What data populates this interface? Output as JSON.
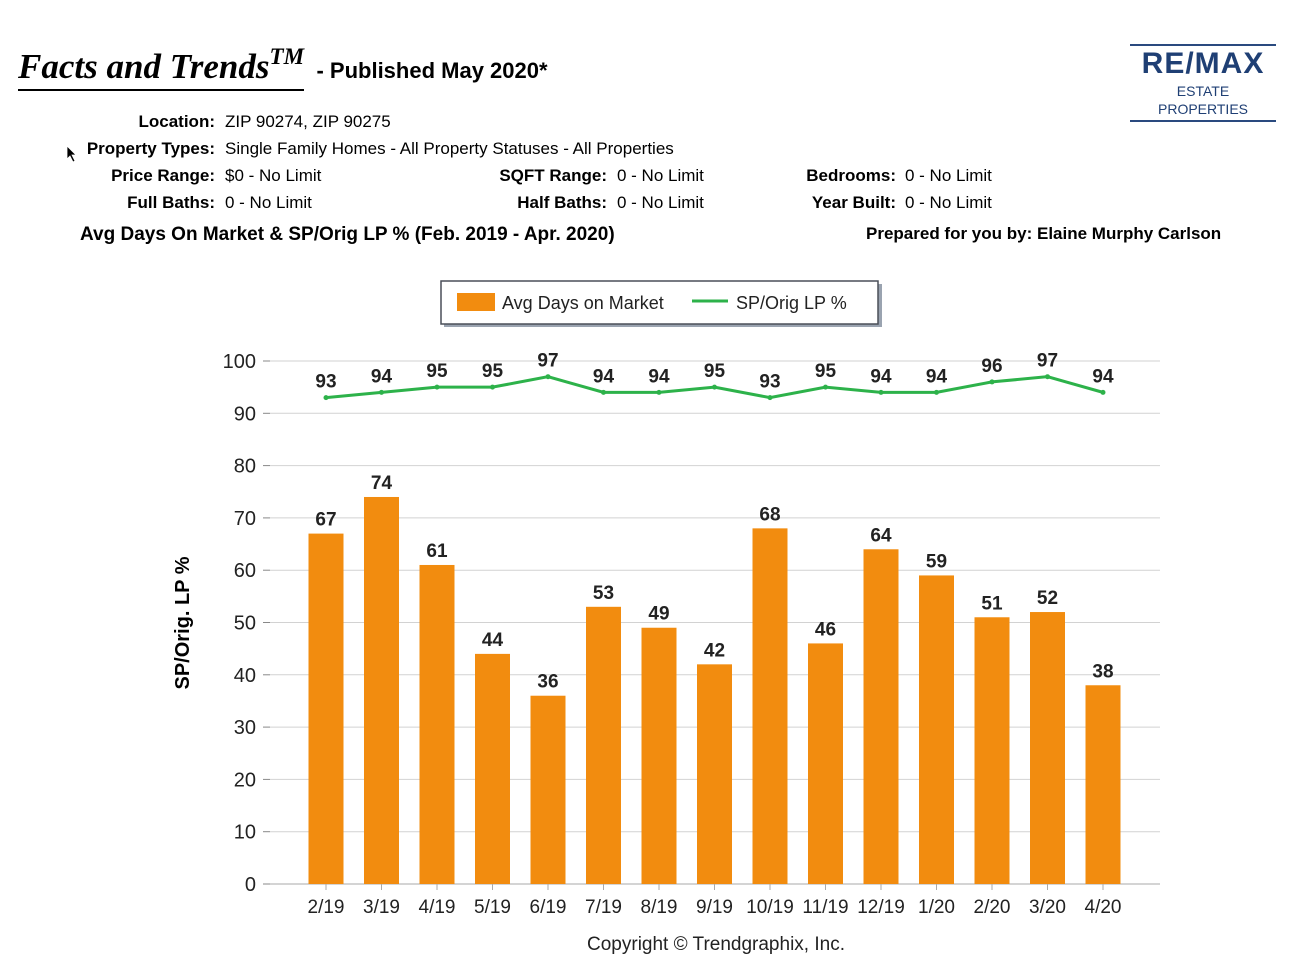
{
  "header": {
    "title": "Facts and Trends",
    "trademark": "TM",
    "published": "- Published May 2020*"
  },
  "logo": {
    "main": "RE/MAX",
    "sub": "ESTATE PROPERTIES"
  },
  "filters": {
    "location_label": "Location:",
    "location": "ZIP 90274, ZIP 90275",
    "property_types_label": "Property Types:",
    "property_types": "Single Family Homes - All Property Statuses - All Properties",
    "price_range_label": "Price Range:",
    "price_range": "$0 - No Limit",
    "sqft_range_label": "SQFT Range:",
    "sqft_range": "0 - No Limit",
    "bedrooms_label": "Bedrooms:",
    "bedrooms": "0 - No Limit",
    "full_baths_label": "Full Baths:",
    "full_baths": "0 - No Limit",
    "half_baths_label": "Half Baths:",
    "half_baths": "0 - No Limit",
    "year_built_label": "Year Built:",
    "year_built": "0 - No Limit"
  },
  "subtitle": "Avg Days On Market & SP/Orig LP % (Feb. 2019 - Apr. 2020)",
  "prepared_by": "Prepared for you by: Elaine Murphy Carlson",
  "copyright": "Copyright © Trendgraphix, Inc.",
  "chart_data": {
    "type": "bar",
    "title": "",
    "xlabel": "",
    "ylabel": "SP/Orig. LP %",
    "ylim": [
      0,
      100
    ],
    "yticks": [
      0,
      10,
      20,
      30,
      40,
      50,
      60,
      70,
      80,
      90,
      100
    ],
    "grid": true,
    "legend_position": "top-center",
    "categories": [
      "2/19",
      "3/19",
      "4/19",
      "5/19",
      "6/19",
      "7/19",
      "8/19",
      "9/19",
      "10/19",
      "11/19",
      "12/19",
      "1/20",
      "2/20",
      "3/20",
      "4/20"
    ],
    "series": [
      {
        "name": "Avg Days on Market",
        "type": "bar",
        "color": "#f28c0f",
        "values": [
          67,
          74,
          61,
          44,
          36,
          53,
          49,
          42,
          68,
          46,
          64,
          59,
          51,
          52,
          38
        ]
      },
      {
        "name": "SP/Orig LP %",
        "type": "line",
        "color": "#2db24a",
        "values": [
          93,
          94,
          95,
          95,
          97,
          94,
          94,
          95,
          93,
          95,
          94,
          94,
          96,
          97,
          94
        ]
      }
    ]
  }
}
